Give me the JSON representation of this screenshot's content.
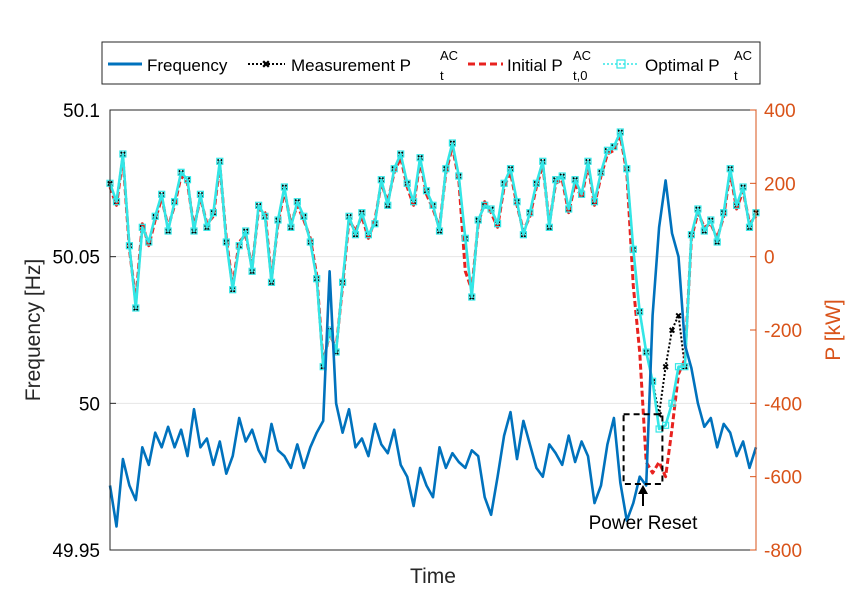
{
  "chart_data": {
    "type": "line",
    "xlabel": "Time",
    "ylabel_left": "Frequency [Hz]",
    "ylabel_right": "P [kW]",
    "ylim_left": [
      49.95,
      50.1
    ],
    "ylim_right": [
      -800,
      400
    ],
    "yticks_left": [
      "49.95",
      "50",
      "50.05",
      "50.1"
    ],
    "yticks_left_values": [
      49.95,
      50.0,
      50.05,
      50.1
    ],
    "yticks_right": [
      "-800",
      "-600",
      "-400",
      "-200",
      "0",
      "200",
      "400"
    ],
    "yticks_right_values": [
      -800,
      -600,
      -400,
      -200,
      0,
      200,
      400
    ],
    "grid": true,
    "legend": {
      "placement": "top",
      "entries": [
        {
          "name": "Frequency",
          "base": "Frequency",
          "sup": "",
          "sub": ""
        },
        {
          "name": "Measurement P_t^AC",
          "base": "Measurement P",
          "sup": "AC",
          "sub": "t"
        },
        {
          "name": "Initial P_t,0^AC",
          "base": "Initial P",
          "sup": "AC",
          "sub": "t,0"
        },
        {
          "name": "Optimal P_t^AC",
          "base": "Optimal P",
          "sup": "AC",
          "sub": "t"
        }
      ]
    },
    "annotation": {
      "text": "Power Reset",
      "x": [
        0.795,
        0.855
      ],
      "y_kW": [
        -620,
        -430
      ]
    },
    "series": [
      {
        "name": "Frequency",
        "axis": "left",
        "color": "#0072BD",
        "x": [
          0.0,
          0.01,
          0.02,
          0.03,
          0.04,
          0.05,
          0.06,
          0.07,
          0.08,
          0.09,
          0.1,
          0.11,
          0.12,
          0.13,
          0.14,
          0.15,
          0.16,
          0.17,
          0.18,
          0.19,
          0.2,
          0.21,
          0.22,
          0.23,
          0.24,
          0.25,
          0.26,
          0.27,
          0.28,
          0.29,
          0.3,
          0.31,
          0.32,
          0.33,
          0.34,
          0.35,
          0.36,
          0.37,
          0.38,
          0.39,
          0.4,
          0.41,
          0.42,
          0.43,
          0.44,
          0.45,
          0.46,
          0.47,
          0.48,
          0.49,
          0.5,
          0.51,
          0.52,
          0.53,
          0.54,
          0.55,
          0.56,
          0.57,
          0.58,
          0.59,
          0.6,
          0.61,
          0.62,
          0.63,
          0.64,
          0.65,
          0.66,
          0.67,
          0.68,
          0.69,
          0.7,
          0.71,
          0.72,
          0.73,
          0.74,
          0.75,
          0.76,
          0.77,
          0.78,
          0.79,
          0.8,
          0.81,
          0.82,
          0.83,
          0.84,
          0.85,
          0.86,
          0.87,
          0.88,
          0.89,
          0.9,
          0.91,
          0.92,
          0.93,
          0.94,
          0.95,
          0.96,
          0.97,
          0.98,
          0.99,
          1.0
        ],
        "values": [
          49.972,
          49.958,
          49.981,
          49.972,
          49.967,
          49.985,
          49.979,
          49.99,
          49.985,
          49.992,
          49.985,
          49.991,
          49.982,
          49.998,
          49.985,
          49.988,
          49.979,
          49.987,
          49.976,
          49.982,
          49.995,
          49.987,
          49.991,
          49.984,
          49.98,
          49.993,
          49.984,
          49.982,
          49.978,
          49.986,
          49.978,
          49.985,
          49.99,
          49.994,
          50.045,
          50.0,
          49.99,
          49.998,
          49.985,
          49.988,
          49.982,
          49.993,
          49.986,
          49.983,
          49.991,
          49.979,
          49.975,
          49.965,
          49.978,
          49.972,
          49.968,
          49.985,
          49.978,
          49.983,
          49.98,
          49.978,
          49.984,
          49.982,
          49.968,
          49.962,
          49.975,
          49.989,
          49.997,
          49.981,
          49.994,
          49.986,
          49.978,
          49.975,
          49.986,
          49.983,
          49.979,
          49.989,
          49.98,
          49.987,
          49.982,
          49.966,
          49.972,
          49.986,
          49.995,
          49.973,
          49.96,
          49.966,
          49.975,
          49.972,
          50.03,
          50.06,
          50.076,
          50.058,
          50.05,
          50.02,
          50.012,
          50.0,
          49.992,
          49.995,
          49.985,
          49.993,
          49.99,
          49.982,
          49.987,
          49.978,
          49.985
        ]
      },
      {
        "name": "Measurement P_t^AC",
        "axis": "right",
        "color": "#000000",
        "x": [
          0.0,
          0.01,
          0.02,
          0.03,
          0.04,
          0.05,
          0.06,
          0.07,
          0.08,
          0.09,
          0.1,
          0.11,
          0.12,
          0.13,
          0.14,
          0.15,
          0.16,
          0.17,
          0.18,
          0.19,
          0.2,
          0.21,
          0.22,
          0.23,
          0.24,
          0.25,
          0.26,
          0.27,
          0.28,
          0.29,
          0.3,
          0.31,
          0.32,
          0.33,
          0.34,
          0.35,
          0.36,
          0.37,
          0.38,
          0.39,
          0.4,
          0.41,
          0.42,
          0.43,
          0.44,
          0.45,
          0.46,
          0.47,
          0.48,
          0.49,
          0.5,
          0.51,
          0.52,
          0.53,
          0.54,
          0.55,
          0.56,
          0.57,
          0.58,
          0.59,
          0.6,
          0.61,
          0.62,
          0.63,
          0.64,
          0.65,
          0.66,
          0.67,
          0.68,
          0.69,
          0.7,
          0.71,
          0.72,
          0.73,
          0.74,
          0.75,
          0.76,
          0.77,
          0.78,
          0.79,
          0.8,
          0.81,
          0.82,
          0.83,
          0.84,
          0.85,
          0.86,
          0.87,
          0.88,
          0.89,
          0.9,
          0.91,
          0.92,
          0.93,
          0.94,
          0.95,
          0.96,
          0.97,
          0.98,
          0.99,
          1.0
        ],
        "values": [
          200,
          150,
          280,
          30,
          -140,
          80,
          40,
          110,
          170,
          70,
          150,
          230,
          210,
          70,
          170,
          80,
          120,
          260,
          40,
          -90,
          30,
          70,
          -40,
          140,
          110,
          -70,
          100,
          190,
          80,
          150,
          110,
          40,
          -60,
          -300,
          -200,
          -260,
          -70,
          110,
          60,
          120,
          60,
          90,
          210,
          140,
          240,
          280,
          200,
          150,
          270,
          180,
          140,
          70,
          240,
          310,
          220,
          50,
          -110,
          100,
          140,
          130,
          90,
          200,
          240,
          150,
          60,
          120,
          200,
          260,
          80,
          210,
          220,
          130,
          210,
          170,
          260,
          150,
          230,
          290,
          300,
          340,
          240,
          20,
          -150,
          -260,
          -340,
          -430,
          -300,
          -200,
          -160,
          -300,
          60,
          130,
          70,
          100,
          40,
          120,
          240,
          140,
          190,
          80,
          120
        ]
      },
      {
        "name": "Initial P_t,0^AC",
        "axis": "right",
        "color": "#E8221F",
        "x": [
          0.0,
          0.01,
          0.02,
          0.03,
          0.04,
          0.05,
          0.06,
          0.07,
          0.08,
          0.09,
          0.1,
          0.11,
          0.12,
          0.13,
          0.14,
          0.15,
          0.16,
          0.17,
          0.18,
          0.19,
          0.2,
          0.21,
          0.22,
          0.23,
          0.24,
          0.25,
          0.26,
          0.27,
          0.28,
          0.29,
          0.3,
          0.31,
          0.32,
          0.33,
          0.34,
          0.35,
          0.36,
          0.37,
          0.38,
          0.39,
          0.4,
          0.41,
          0.42,
          0.43,
          0.44,
          0.45,
          0.46,
          0.47,
          0.48,
          0.49,
          0.5,
          0.51,
          0.52,
          0.53,
          0.54,
          0.55,
          0.56,
          0.57,
          0.58,
          0.59,
          0.6,
          0.61,
          0.62,
          0.63,
          0.64,
          0.65,
          0.66,
          0.67,
          0.68,
          0.69,
          0.7,
          0.71,
          0.72,
          0.73,
          0.74,
          0.75,
          0.76,
          0.77,
          0.78,
          0.79,
          0.8,
          0.81,
          0.82,
          0.83,
          0.84,
          0.85,
          0.86,
          0.87,
          0.88,
          0.89,
          0.9,
          0.91,
          0.92,
          0.93,
          0.94,
          0.95,
          0.96,
          0.97,
          0.98,
          0.99,
          1.0
        ],
        "values": [
          190,
          140,
          270,
          20,
          -120,
          90,
          30,
          100,
          160,
          80,
          140,
          220,
          200,
          80,
          160,
          90,
          110,
          250,
          50,
          -80,
          40,
          60,
          -30,
          130,
          120,
          -60,
          90,
          180,
          90,
          140,
          100,
          50,
          -50,
          -290,
          -210,
          -250,
          -80,
          100,
          70,
          110,
          50,
          100,
          200,
          150,
          230,
          270,
          190,
          140,
          260,
          170,
          130,
          80,
          230,
          300,
          210,
          -40,
          -90,
          90,
          150,
          120,
          80,
          190,
          230,
          140,
          70,
          110,
          190,
          250,
          90,
          200,
          210,
          120,
          200,
          160,
          250,
          140,
          220,
          280,
          290,
          330,
          230,
          -80,
          -260,
          -560,
          -590,
          -560,
          -600,
          -470,
          -320,
          -280,
          50,
          120,
          80,
          90,
          50,
          110,
          230,
          130,
          180,
          90,
          110
        ]
      },
      {
        "name": "Optimal P_t^AC",
        "axis": "right",
        "color": "#33E6E6",
        "x": [
          0.0,
          0.01,
          0.02,
          0.03,
          0.04,
          0.05,
          0.06,
          0.07,
          0.08,
          0.09,
          0.1,
          0.11,
          0.12,
          0.13,
          0.14,
          0.15,
          0.16,
          0.17,
          0.18,
          0.19,
          0.2,
          0.21,
          0.22,
          0.23,
          0.24,
          0.25,
          0.26,
          0.27,
          0.28,
          0.29,
          0.3,
          0.31,
          0.32,
          0.33,
          0.34,
          0.35,
          0.36,
          0.37,
          0.38,
          0.39,
          0.4,
          0.41,
          0.42,
          0.43,
          0.44,
          0.45,
          0.46,
          0.47,
          0.48,
          0.49,
          0.5,
          0.51,
          0.52,
          0.53,
          0.54,
          0.55,
          0.56,
          0.57,
          0.58,
          0.59,
          0.6,
          0.61,
          0.62,
          0.63,
          0.64,
          0.65,
          0.66,
          0.67,
          0.68,
          0.69,
          0.7,
          0.71,
          0.72,
          0.73,
          0.74,
          0.75,
          0.76,
          0.77,
          0.78,
          0.79,
          0.8,
          0.81,
          0.82,
          0.83,
          0.84,
          0.85,
          0.86,
          0.87,
          0.88,
          0.89,
          0.9,
          0.91,
          0.92,
          0.93,
          0.94,
          0.95,
          0.96,
          0.97,
          0.98,
          0.99,
          1.0
        ],
        "values": [
          200,
          150,
          280,
          30,
          -140,
          80,
          40,
          110,
          170,
          70,
          150,
          230,
          210,
          70,
          170,
          80,
          120,
          260,
          40,
          -90,
          30,
          70,
          -40,
          140,
          110,
          -70,
          100,
          190,
          80,
          150,
          110,
          40,
          -60,
          -300,
          -200,
          -260,
          -70,
          110,
          60,
          120,
          60,
          90,
          210,
          140,
          240,
          280,
          200,
          150,
          270,
          180,
          140,
          70,
          240,
          310,
          220,
          50,
          -110,
          100,
          140,
          130,
          90,
          200,
          240,
          150,
          60,
          120,
          200,
          260,
          80,
          210,
          220,
          130,
          210,
          170,
          260,
          150,
          230,
          290,
          300,
          340,
          240,
          20,
          -150,
          -260,
          -340,
          -470,
          -460,
          -400,
          -300,
          -300,
          60,
          130,
          70,
          100,
          40,
          120,
          240,
          140,
          190,
          80,
          120
        ]
      }
    ]
  }
}
